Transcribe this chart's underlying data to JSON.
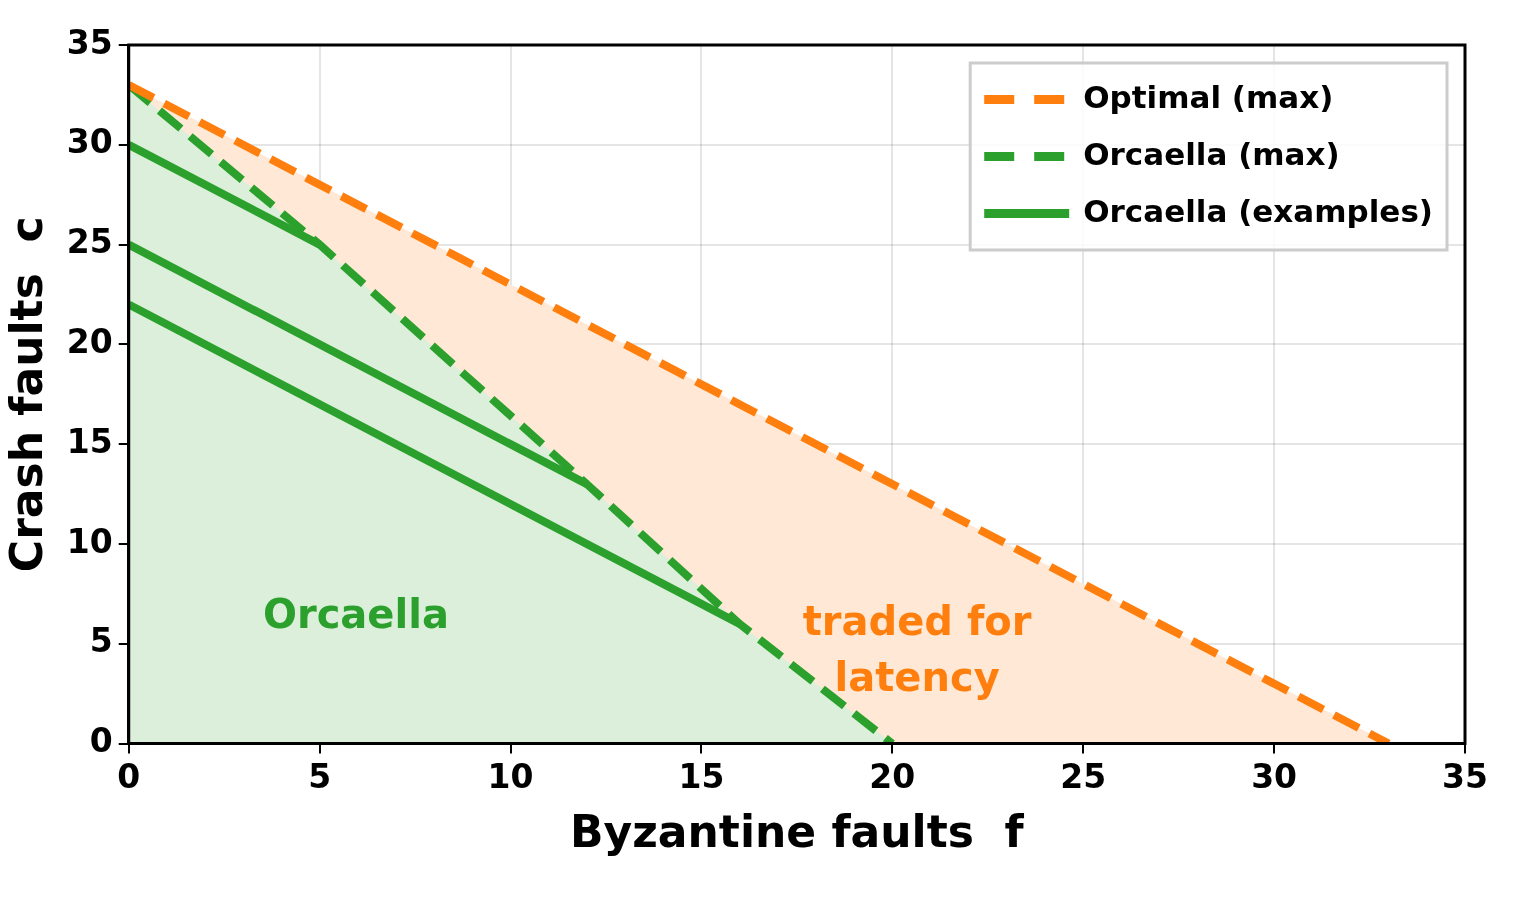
{
  "chart_data": {
    "type": "line",
    "xlabel": "Byzantine faults  f",
    "ylabel": "Crash faults  c",
    "xlim": [
      0,
      35
    ],
    "ylim": [
      0,
      35
    ],
    "xticks": [
      0,
      5,
      10,
      15,
      20,
      25,
      30,
      35
    ],
    "yticks": [
      0,
      5,
      10,
      15,
      20,
      25,
      30,
      35
    ],
    "grid": true,
    "legend": "top right",
    "marker": "none",
    "series": [
      {
        "name": "Optimal (max)",
        "type": "area",
        "color": "#ff7f0e",
        "line_style": "dashed",
        "x": [
          0,
          33
        ],
        "values": [
          33,
          0
        ]
      },
      {
        "name": "Orcaella (max)",
        "type": "area",
        "color": "#2ca02c",
        "line_style": "dashed",
        "x": [
          0,
          5,
          12,
          16,
          20
        ],
        "values": [
          33,
          25,
          13,
          6,
          0
        ]
      },
      {
        "name": "Orcaella (examples)",
        "type": "line",
        "color": "#2ca02c",
        "line_style": "solid",
        "x": [
          0,
          5
        ],
        "values": [
          30,
          25
        ]
      },
      {
        "type": "line",
        "color": "#2ca02c",
        "line_style": "solid",
        "x": [
          0,
          12
        ],
        "values": [
          25,
          13
        ]
      },
      {
        "type": "line",
        "color": "#2ca02c",
        "line_style": "solid",
        "x": [
          0,
          16
        ],
        "values": [
          22,
          6
        ]
      }
    ],
    "annotations": [
      "traded for\nlatency",
      "Orcaella"
    ]
  }
}
